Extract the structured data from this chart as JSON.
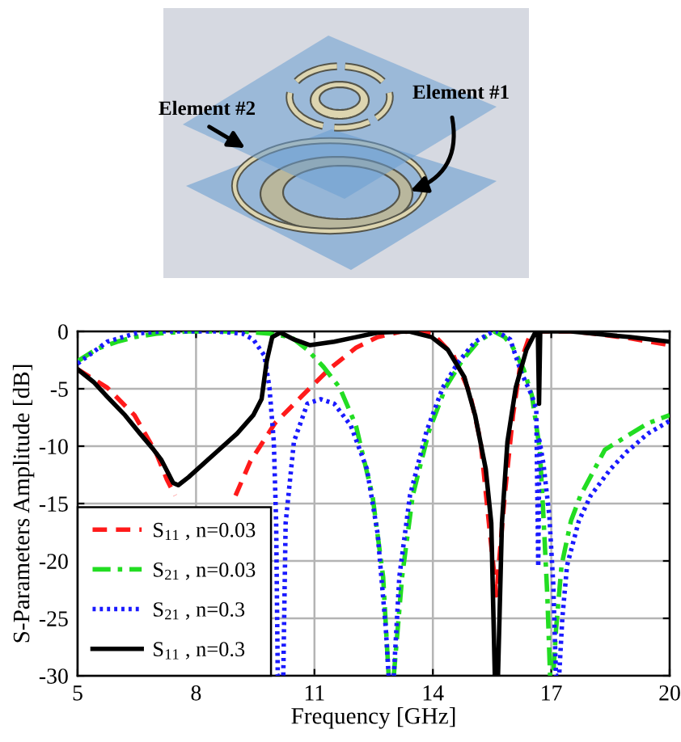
{
  "chart_data": {
    "type": "line",
    "xlabel": "Frequency [GHz]",
    "ylabel": "S-Parameters Amplitude [dB]",
    "annotations": [
      "Element #2",
      "Element #1"
    ],
    "xlim": [
      5,
      20
    ],
    "ylim": [
      -30,
      0
    ],
    "xticks": [
      5,
      8,
      11,
      14,
      17,
      20
    ],
    "yticks": [
      -30,
      -25,
      -20,
      -15,
      -10,
      -5,
      0
    ],
    "grid": true,
    "legend": "bottom left",
    "series": [
      {
        "name": "S$_{11}$ , n=0.03",
        "color": "#ff1a1a",
        "line_style": "dashed",
        "x": [
          5,
          5.75,
          6.44,
          6.99,
          7.26,
          7.47,
          7.8,
          9.0,
          9.38,
          10.0,
          10.69,
          11.37,
          12.06,
          12.6,
          13.2,
          14.0,
          14.52,
          14.93,
          15.21,
          15.42,
          15.55,
          15.61,
          15.68,
          15.82,
          16.03,
          16.23,
          16.44,
          16.71,
          17.5,
          18.08,
          19.0,
          20
        ],
        "values": [
          -3.3,
          -4.9,
          -7.3,
          -10.6,
          -12.9,
          -14.3,
          null,
          -14.3,
          -11.3,
          -8.0,
          -5.6,
          -3.3,
          -1.4,
          -0.5,
          0,
          -0.2,
          -2.1,
          -5.3,
          -9.6,
          -16.7,
          -21,
          -23,
          -20,
          -14.3,
          -7.3,
          -2.6,
          -0.5,
          0,
          0,
          -0.2,
          -0.6,
          -1.2
        ]
      },
      {
        "name": "S$_{21}$ , n=0.03",
        "color": "#22dd22",
        "line_style": "dashdot",
        "x": [
          5,
          5.5,
          6.0,
          6.44,
          7.0,
          7.8,
          9.18,
          9.86,
          10.41,
          10.82,
          11.23,
          11.64,
          12.05,
          12.47,
          12.74,
          12.88,
          13.01,
          13.22,
          13.49,
          13.9,
          14.32,
          14.73,
          15.14,
          15.55,
          15.82,
          16.03,
          16.3,
          16.51,
          16.71,
          16.8,
          16.9,
          16.97,
          17.05,
          17.12,
          17.26,
          17.5,
          17.74,
          18.36,
          19.45,
          20
        ],
        "values": [
          -2.6,
          -1.5,
          -0.9,
          -0.5,
          -0.2,
          0,
          0,
          -0.2,
          -0.5,
          -1.6,
          -3.1,
          -4.9,
          -8.2,
          -14.3,
          -21.4,
          -30,
          -30,
          -21.4,
          -14.3,
          -8.7,
          -4.9,
          -2.6,
          -0.9,
          0,
          -0.5,
          -1.4,
          -3.3,
          -5.6,
          -10.3,
          -16,
          -23,
          -30,
          -30,
          -26,
          -20.4,
          -16.5,
          -14.3,
          -10.3,
          -8.0,
          -7.3
        ]
      },
      {
        "name": "S$_{21}$ , n=0.3",
        "color": "#1a1aff",
        "line_style": "dotted",
        "x": [
          5,
          5.75,
          6.44,
          7.12,
          8.49,
          9.18,
          9.45,
          9.73,
          9.86,
          9.97,
          10.03,
          10.07,
          10.21,
          10.27,
          10.48,
          10.82,
          11.16,
          11.5,
          11.92,
          12.33,
          12.6,
          12.81,
          12.88,
          13.01,
          13.15,
          13.42,
          13.84,
          14.25,
          14.66,
          15.07,
          15.48,
          15.62,
          15.96,
          16.23,
          16.51,
          16.62,
          16.67,
          16.7,
          16.8,
          16.95,
          17.05,
          17.12,
          17.2,
          17.28,
          17.4,
          17.7,
          18.0,
          18.5,
          18.91,
          19.45,
          20
        ],
        "values": [
          -2.8,
          -0.9,
          -0.2,
          0,
          0,
          -0.2,
          -0.7,
          -2.1,
          -4.9,
          -9.6,
          -16.7,
          -30,
          -30,
          -16.7,
          -9.6,
          -6.3,
          -5.9,
          -6.3,
          -8.2,
          -12,
          -17.6,
          -26,
          -30,
          -30,
          -21.4,
          -14.3,
          -8.7,
          -4.9,
          -2.6,
          -0.9,
          -0.1,
          0,
          -0.7,
          -3.5,
          -5.6,
          -6.8,
          -20.5,
          -9.5,
          -11.5,
          -16,
          -22,
          -30,
          -30,
          -25,
          -20.4,
          -16.5,
          -14.3,
          -12,
          -10.5,
          -8.9,
          -7.8
        ]
      },
      {
        "name": "S$_{11}$ , n=0.3",
        "color": "#000000",
        "line_style": "solid",
        "x": [
          5,
          5.4,
          5.75,
          6.2,
          6.58,
          6.9,
          7.12,
          7.3,
          7.42,
          7.55,
          7.81,
          8.49,
          9.04,
          9.45,
          9.66,
          9.79,
          9.93,
          10.14,
          10.48,
          10.89,
          11.5,
          12.05,
          12.6,
          13.4,
          13.97,
          14.38,
          14.8,
          15.07,
          15.34,
          15.48,
          15.57,
          15.65,
          15.75,
          15.89,
          16.1,
          16.37,
          16.58,
          16.66,
          16.69,
          16.72,
          17.5,
          18.08,
          19.0,
          20
        ],
        "values": [
          -3.3,
          -4.4,
          -5.7,
          -7.3,
          -8.9,
          -10.2,
          -11.2,
          -12.4,
          -13.2,
          -13.4,
          -12.7,
          -10.6,
          -8.9,
          -7.3,
          -5.9,
          -2.6,
          -0.5,
          -0.1,
          -0.7,
          -1.2,
          -0.9,
          -0.5,
          -0.1,
          0,
          -0.5,
          -1.6,
          -4.0,
          -7.3,
          -12,
          -16.7,
          -30,
          -30,
          -16.7,
          -9.6,
          -4.9,
          -1.6,
          -0.2,
          0,
          -6.3,
          0,
          0,
          -0.2,
          -0.5,
          -0.9
        ]
      }
    ]
  }
}
